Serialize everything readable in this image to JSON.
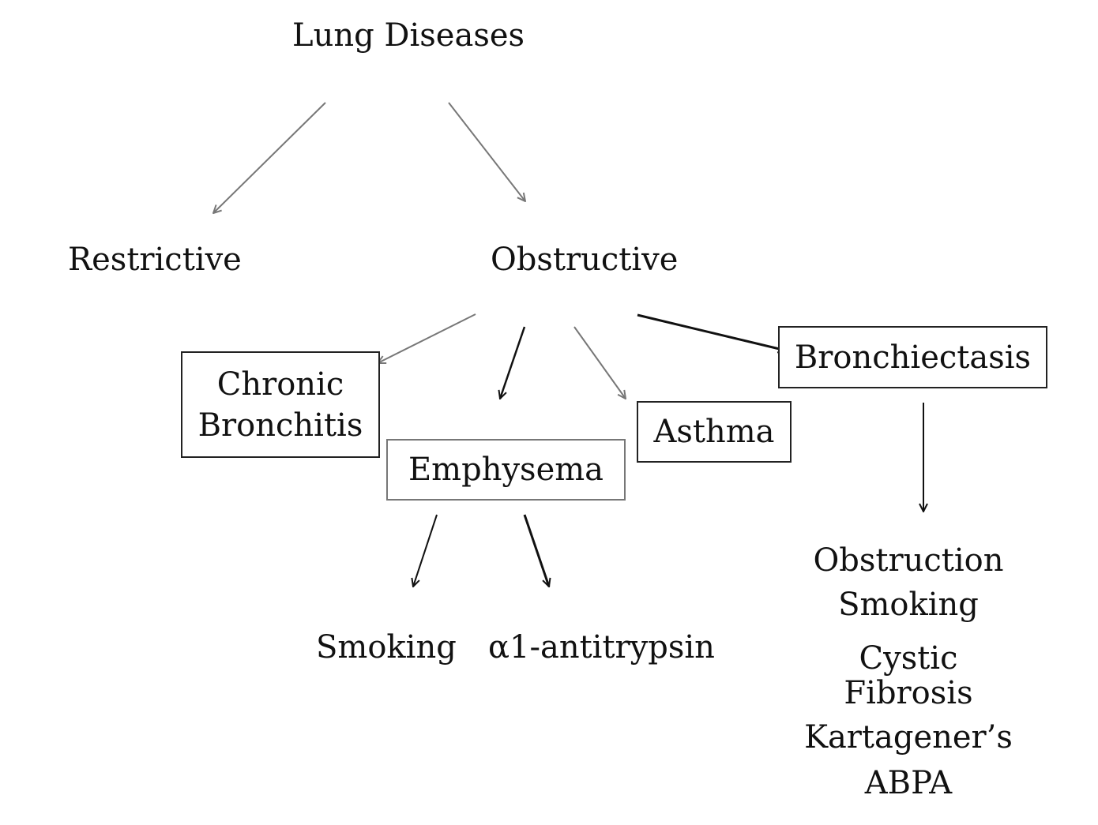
{
  "nodes": {
    "root": "Lung Diseases",
    "restrictive": "Restrictive",
    "obstructive": "Obstructive",
    "chronic_bronchitis": [
      "Chronic",
      "Bronchitis"
    ],
    "emphysema": "Emphysema",
    "asthma": "Asthma",
    "bronchiectasis": "Bronchiectasis",
    "emphysema_causes": [
      "Smoking",
      "α1-antitrypsin"
    ],
    "bronchiectasis_causes": [
      "Obstruction",
      "Smoking",
      "Cystic",
      "Fibrosis",
      "Kartagener’s",
      "ABPA"
    ]
  },
  "edges": [
    {
      "from": "Lung Diseases",
      "to": "Restrictive"
    },
    {
      "from": "Lung Diseases",
      "to": "Obstructive"
    },
    {
      "from": "Obstructive",
      "to": "Chronic Bronchitis"
    },
    {
      "from": "Obstructive",
      "to": "Emphysema"
    },
    {
      "from": "Obstructive",
      "to": "Asthma"
    },
    {
      "from": "Obstructive",
      "to": "Bronchiectasis"
    },
    {
      "from": "Emphysema",
      "to": "Smoking"
    },
    {
      "from": "Emphysema",
      "to": "α1-antitrypsin"
    },
    {
      "from": "Bronchiectasis",
      "to": "Obstruction / Smoking / Cystic Fibrosis / Kartagener’s / ABPA"
    }
  ]
}
